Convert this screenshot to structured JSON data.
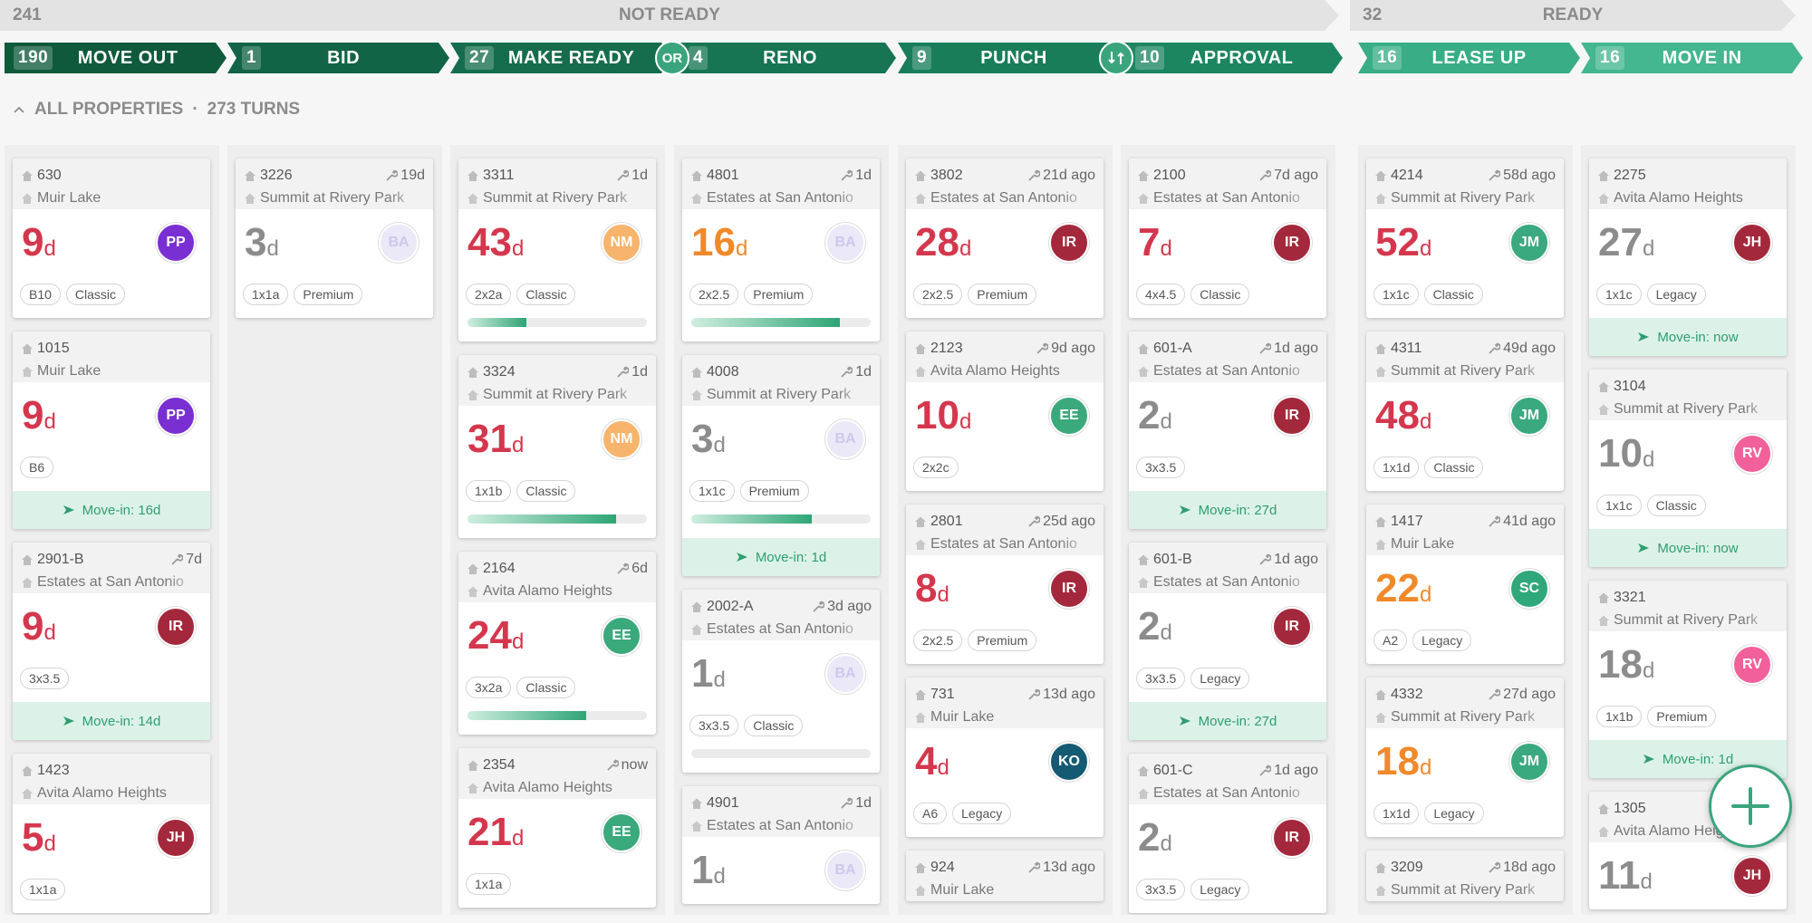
{
  "groups": [
    {
      "count": 241,
      "label": "NOT READY"
    },
    {
      "count": 32,
      "label": "READY"
    }
  ],
  "stages": [
    {
      "count": 190,
      "label": "MOVE OUT",
      "color": "#0f5a3b"
    },
    {
      "count": 1,
      "label": "BID",
      "color": "#126446"
    },
    {
      "count": 27,
      "label": "MAKE READY",
      "color": "#156d4d"
    },
    {
      "count": 4,
      "label": "RENO",
      "color": "#177554"
    },
    {
      "count": 9,
      "label": "PUNCH",
      "color": "#197d5a"
    },
    {
      "count": 10,
      "label": "APPROVAL",
      "color": "#1c8661"
    },
    {
      "count": 16,
      "label": "LEASE UP",
      "color": "#38ad86"
    },
    {
      "count": 16,
      "label": "MOVE IN",
      "color": "#44b690"
    }
  ],
  "connector": "OR",
  "filter": {
    "label": "ALL PROPERTIES",
    "turns": "273 TURNS"
  },
  "day_unit": "d",
  "columns": [
    {
      "cards": [
        {
          "unit": "630",
          "property": "Muir Lake",
          "days": 9,
          "color": "#d4374d",
          "avatar": "PP",
          "avatar_color": "#7a2fd3",
          "tags": [
            "B10",
            "Classic"
          ]
        },
        {
          "unit": "1015",
          "property": "Muir Lake",
          "days": 9,
          "color": "#d4374d",
          "avatar": "PP",
          "avatar_color": "#7a2fd3",
          "tags": [
            "B6"
          ],
          "move_in": "Move-in: 16d"
        },
        {
          "unit": "2901-B",
          "age": "7d",
          "property": "Estates at San Antonio",
          "days": 9,
          "color": "#d4374d",
          "avatar": "IR",
          "avatar_color": "#a4283c",
          "tags": [
            "3x3.5"
          ],
          "move_in": "Move-in: 14d"
        },
        {
          "unit": "1423",
          "property": "Avita Alamo Heights",
          "days": 5,
          "color": "#d4374d",
          "avatar": "JH",
          "avatar_color": "#a4283c",
          "tags": [
            "1x1a"
          ]
        }
      ]
    },
    {
      "cards": [
        {
          "unit": "3226",
          "age": "19d",
          "property": "Summit at Rivery Park",
          "days": 3,
          "color": "#8c8c8c",
          "avatar": "BA",
          "avatar_color": "#ebe8f8",
          "avatar_text": "#cdc8ec",
          "tags": [
            "1x1a",
            "Premium"
          ]
        }
      ]
    },
    {
      "cards": [
        {
          "unit": "3311",
          "age": "1d",
          "property": "Summit at Rivery Park",
          "days": 43,
          "color": "#d4374d",
          "avatar": "NM",
          "avatar_color": "#f7b46c",
          "tags": [
            "2x2a",
            "Classic"
          ],
          "progress": 33
        },
        {
          "unit": "3324",
          "age": "1d",
          "property": "Summit at Rivery Park",
          "days": 31,
          "color": "#d4374d",
          "avatar": "NM",
          "avatar_color": "#f7b46c",
          "tags": [
            "1x1b",
            "Classic"
          ],
          "progress": 83
        },
        {
          "unit": "2164",
          "age": "6d",
          "property": "Avita Alamo Heights",
          "days": 24,
          "color": "#d4374d",
          "avatar": "EE",
          "avatar_color": "#3aa97c",
          "tags": [
            "3x2a",
            "Classic"
          ],
          "progress": 66
        },
        {
          "unit": "2354",
          "age": "now",
          "property": "Avita Alamo Heights",
          "days": 21,
          "color": "#d4374d",
          "avatar": "EE",
          "avatar_color": "#3aa97c",
          "tags": [
            "1x1a"
          ]
        }
      ]
    },
    {
      "cards": [
        {
          "unit": "4801",
          "age": "1d",
          "property": "Estates at San Antonio",
          "days": 16,
          "color": "#f0892b",
          "avatar": "BA",
          "avatar_color": "#ebe8f8",
          "avatar_text": "#cdc8ec",
          "tags": [
            "2x2.5",
            "Premium"
          ],
          "progress": 83
        },
        {
          "unit": "4008",
          "age": "1d",
          "property": "Summit at Rivery Park",
          "days": 3,
          "color": "#8c8c8c",
          "avatar": "BA",
          "avatar_color": "#ebe8f8",
          "avatar_text": "#cdc8ec",
          "tags": [
            "1x1c",
            "Premium"
          ],
          "progress": 67,
          "move_in": "Move-in: 1d"
        },
        {
          "unit": "2002-A",
          "age": "3d ago",
          "property": "Estates at San Antonio",
          "days": 1,
          "color": "#8c8c8c",
          "avatar": "BA",
          "avatar_color": "#ebe8f8",
          "avatar_text": "#cdc8ec",
          "tags": [
            "3x3.5",
            "Classic"
          ],
          "progress": 0
        },
        {
          "unit": "4901",
          "age": "1d",
          "property": "Estates at San Antonio",
          "days": 1,
          "color": "#8c8c8c",
          "avatar": "BA",
          "avatar_color": "#ebe8f8",
          "avatar_text": "#cdc8ec"
        }
      ]
    },
    {
      "cards": [
        {
          "unit": "3802",
          "age": "21d ago",
          "property": "Estates at San Antonio",
          "days": 28,
          "color": "#d4374d",
          "avatar": "IR",
          "avatar_color": "#a4283c",
          "tags": [
            "2x2.5",
            "Premium"
          ]
        },
        {
          "unit": "2123",
          "age": "9d ago",
          "property": "Avita Alamo Heights",
          "days": 10,
          "color": "#d4374d",
          "avatar": "EE",
          "avatar_color": "#3aa97c",
          "tags": [
            "2x2c"
          ]
        },
        {
          "unit": "2801",
          "age": "25d ago",
          "property": "Estates at San Antonio",
          "days": 8,
          "color": "#d4374d",
          "avatar": "IR",
          "avatar_color": "#a4283c",
          "tags": [
            "2x2.5",
            "Premium"
          ]
        },
        {
          "unit": "731",
          "age": "13d ago",
          "property": "Muir Lake",
          "days": 4,
          "color": "#d4374d",
          "avatar": "KO",
          "avatar_color": "#145a73",
          "tags": [
            "A6",
            "Legacy"
          ]
        },
        {
          "unit": "924",
          "age": "13d ago",
          "property": "Muir Lake"
        }
      ]
    },
    {
      "cards": [
        {
          "unit": "2100",
          "age": "7d ago",
          "property": "Estates at San Antonio",
          "days": 7,
          "color": "#d4374d",
          "avatar": "IR",
          "avatar_color": "#a4283c",
          "tags": [
            "4x4.5",
            "Classic"
          ]
        },
        {
          "unit": "601-A",
          "age": "1d ago",
          "property": "Estates at San Antonio",
          "days": 2,
          "color": "#8c8c8c",
          "avatar": "IR",
          "avatar_color": "#a4283c",
          "tags": [
            "3x3.5"
          ],
          "move_in": "Move-in: 27d"
        },
        {
          "unit": "601-B",
          "age": "1d ago",
          "property": "Estates at San Antonio",
          "days": 2,
          "color": "#8c8c8c",
          "avatar": "IR",
          "avatar_color": "#a4283c",
          "tags": [
            "3x3.5",
            "Legacy"
          ],
          "move_in": "Move-in: 27d"
        },
        {
          "unit": "601-C",
          "age": "1d ago",
          "property": "Estates at San Antonio",
          "days": 2,
          "color": "#8c8c8c",
          "avatar": "IR",
          "avatar_color": "#a4283c",
          "tags": [
            "3x3.5",
            "Legacy"
          ]
        }
      ]
    },
    {
      "cards": [
        {
          "unit": "4214",
          "age": "58d ago",
          "property": "Summit at Rivery Park",
          "days": 52,
          "color": "#d4374d",
          "avatar": "JM",
          "avatar_color": "#3aa97f",
          "tags": [
            "1x1c",
            "Classic"
          ]
        },
        {
          "unit": "4311",
          "age": "49d ago",
          "property": "Summit at Rivery Park",
          "days": 48,
          "color": "#d4374d",
          "avatar": "JM",
          "avatar_color": "#3aa97f",
          "tags": [
            "1x1d",
            "Classic"
          ]
        },
        {
          "unit": "1417",
          "age": "41d ago",
          "property": "Muir Lake",
          "days": 22,
          "color": "#f0892b",
          "avatar": "SC",
          "avatar_color": "#2fa77b",
          "tags": [
            "A2",
            "Legacy"
          ]
        },
        {
          "unit": "4332",
          "age": "27d ago",
          "property": "Summit at Rivery Park",
          "days": 18,
          "color": "#f0892b",
          "avatar": "JM",
          "avatar_color": "#3aa97f",
          "tags": [
            "1x1d",
            "Legacy"
          ]
        },
        {
          "unit": "3209",
          "age": "18d ago",
          "property": "Summit at Rivery Park"
        }
      ]
    },
    {
      "cards": [
        {
          "unit": "2275",
          "property": "Avita Alamo Heights",
          "days": 27,
          "color": "#8c8c8c",
          "avatar": "JH",
          "avatar_color": "#a4283c",
          "tags": [
            "1x1c",
            "Legacy"
          ],
          "move_in": "Move-in: now"
        },
        {
          "unit": "3104",
          "property": "Summit at Rivery Park",
          "days": 10,
          "color": "#8c8c8c",
          "avatar": "RV",
          "avatar_color": "#f2609b",
          "tags": [
            "1x1c",
            "Classic"
          ],
          "move_in": "Move-in: now"
        },
        {
          "unit": "3321",
          "property": "Summit at Rivery Park",
          "days": 18,
          "color": "#8c8c8c",
          "avatar": "RV",
          "avatar_color": "#f2609b",
          "tags": [
            "1x1b",
            "Premium"
          ],
          "move_in": "Move-in: 1d"
        },
        {
          "unit": "1305",
          "property": "Avita Alamo Heights",
          "days": 11,
          "color": "#8c8c8c",
          "avatar": "JH",
          "avatar_color": "#a4283c"
        }
      ]
    }
  ]
}
